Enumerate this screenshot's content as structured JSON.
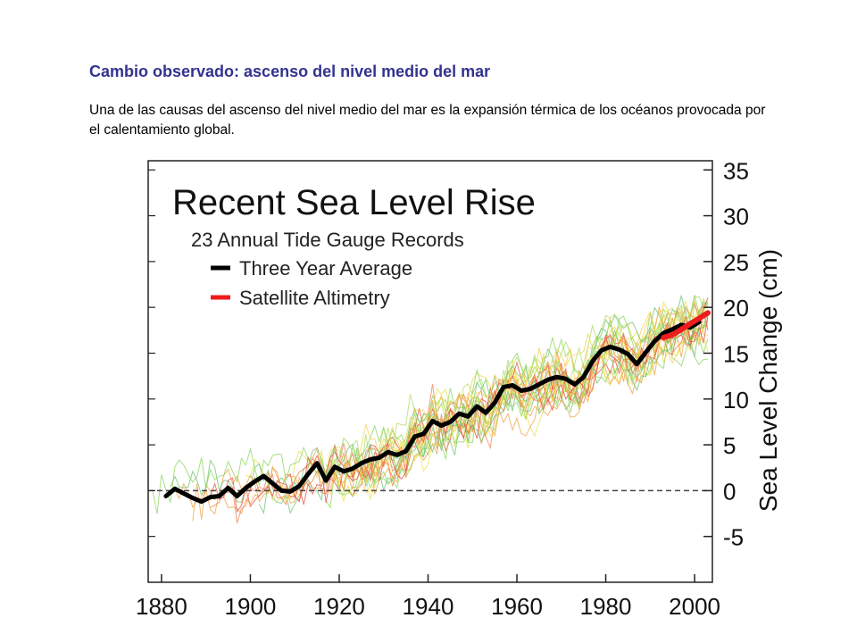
{
  "slide": {
    "title": "Cambio observado: ascenso del nivel medio del mar",
    "description": "Una de las causas del ascenso del nivel medio del mar es la expansión térmica de los océanos provocada por el calentamiento global."
  },
  "chart_data": {
    "type": "line",
    "title": "Recent Sea Level Rise",
    "subtitle": "23 Annual Tide Gauge Records",
    "ylabel": "Sea Level Change (cm)",
    "xlabel": "",
    "xlim": [
      1877,
      2004
    ],
    "ylim": [
      -10,
      36
    ],
    "x_ticks": [
      1880,
      1900,
      1920,
      1940,
      1960,
      1980,
      2000
    ],
    "y_ticks": [
      -5,
      0,
      5,
      10,
      15,
      20,
      25,
      30,
      35
    ],
    "legend_position": "top-left",
    "grid": false,
    "reference_line": {
      "y": 0,
      "style": "dashed"
    },
    "tide_gauge_records": {
      "count": 23,
      "colors": [
        "#e8e04a",
        "#8ad65a",
        "#f0a040",
        "#e84c3c",
        "#b0dc6a",
        "#f5d24a",
        "#6cc070",
        "#f07c50"
      ]
    },
    "series": [
      {
        "name": "Three Year Average",
        "color": "#000000",
        "x": [
          1881,
          1883,
          1885,
          1887,
          1889,
          1891,
          1893,
          1895,
          1897,
          1899,
          1901,
          1903,
          1905,
          1907,
          1909,
          1911,
          1913,
          1915,
          1917,
          1919,
          1921,
          1923,
          1925,
          1927,
          1929,
          1931,
          1933,
          1935,
          1937,
          1939,
          1941,
          1943,
          1945,
          1947,
          1949,
          1951,
          1953,
          1955,
          1957,
          1959,
          1961,
          1963,
          1965,
          1967,
          1969,
          1971,
          1973,
          1975,
          1977,
          1979,
          1981,
          1983,
          1985,
          1987,
          1989,
          1991,
          1993,
          1995,
          1997,
          1999,
          2001
        ],
        "y": [
          -0.6,
          0.2,
          -0.3,
          -0.8,
          -1.2,
          -0.7,
          -0.6,
          0.3,
          -0.6,
          0.3,
          1.0,
          1.6,
          0.8,
          0.0,
          -0.1,
          0.5,
          1.8,
          3.0,
          1.1,
          2.6,
          2.1,
          2.4,
          3.0,
          3.4,
          3.6,
          4.2,
          3.9,
          4.3,
          5.9,
          6.2,
          7.6,
          7.1,
          7.5,
          8.4,
          8.1,
          9.2,
          8.5,
          9.6,
          11.3,
          11.5,
          10.9,
          11.1,
          11.6,
          12.1,
          12.4,
          12.2,
          11.6,
          12.4,
          14.1,
          15.3,
          15.7,
          15.4,
          14.9,
          13.8,
          15.1,
          16.3,
          17.2,
          17.6,
          18.1,
          17.8,
          18.4
        ]
      },
      {
        "name": "Satellite Altimetry",
        "color": "#ee1c1c",
        "x": [
          1993,
          1995,
          1997,
          1999,
          2001,
          2003
        ],
        "y": [
          16.7,
          17.0,
          17.6,
          18.2,
          18.8,
          19.4
        ]
      }
    ]
  }
}
